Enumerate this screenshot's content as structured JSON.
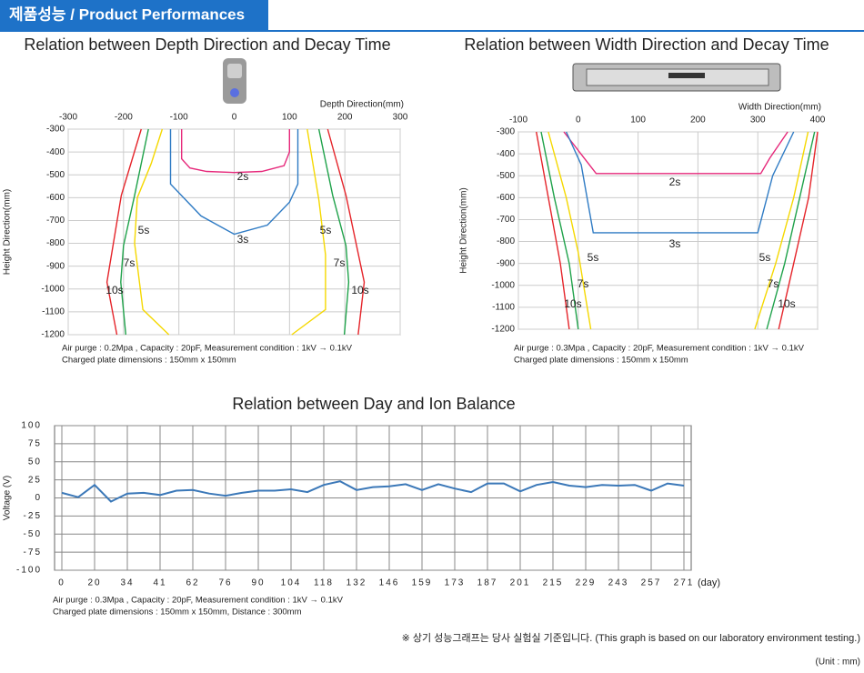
{
  "header": {
    "title": "제품성능 / Product Performances"
  },
  "chart_data": [
    {
      "type": "line",
      "title": "Relation between Depth Direction and Decay Time",
      "x_label": "Depth Direction(mm)",
      "y_label": "Height Direction(mm)",
      "xlim": [
        -300,
        300
      ],
      "xticks": [
        -300,
        -200,
        -100,
        0,
        100,
        200,
        300
      ],
      "ylim": [
        -1200,
        -300
      ],
      "yticks": [
        -300,
        -400,
        -500,
        -600,
        -700,
        -800,
        -900,
        -1000,
        -1100,
        -1200
      ],
      "grid": true,
      "notes": [
        "Air purge : 0.2Mpa , Capacity : 20pF, Measurement condition : 1kV → 0.1kV",
        "Charged plate dimensions : 150mm x 150mm"
      ],
      "series": [
        {
          "name": "2s",
          "color": "#e6287a",
          "x": [
            -95,
            -95,
            -80,
            -50,
            0,
            50,
            90,
            100,
            100
          ],
          "values": [
            -300,
            -430,
            -470,
            -485,
            -490,
            -485,
            -460,
            -400,
            -300
          ]
        },
        {
          "name": "3s",
          "color": "#2f7bc4",
          "x": [
            -115,
            -115,
            -60,
            0,
            60,
            100,
            115,
            115
          ],
          "values": [
            -300,
            -540,
            -680,
            -760,
            -720,
            -620,
            -540,
            -300
          ]
        },
        {
          "name": "5s",
          "color": "#f5d800",
          "x": [
            -130,
            -150,
            -175,
            -180,
            -165,
            -118,
            null,
            132,
            153,
            165,
            165,
            104
          ],
          "values": [
            -300,
            -450,
            -600,
            -800,
            -1090,
            -1200,
            null,
            -300,
            -610,
            -850,
            -1090,
            -1200
          ]
        },
        {
          "name": "7s",
          "color": "#1fa24a",
          "x": [
            -155,
            -180,
            -200,
            -205,
            -196,
            null,
            153,
            178,
            202,
            207,
            199
          ],
          "values": [
            -300,
            -590,
            -810,
            -970,
            -1200,
            null,
            -300,
            -590,
            -810,
            -970,
            -1200
          ]
        },
        {
          "name": "10s",
          "color": "#e5242a",
          "x": [
            -168,
            -204,
            -230,
            -212,
            null,
            169,
            202,
            235,
            224
          ],
          "values": [
            -300,
            -590,
            -970,
            -1200,
            null,
            -300,
            -590,
            -970,
            -1200
          ]
        }
      ]
    },
    {
      "type": "line",
      "title": "Relation between Width Direction and Decay Time",
      "x_label": "Width Direction(mm)",
      "y_label": "Height Direction(mm)",
      "xlim": [
        -100,
        400
      ],
      "xticks": [
        -100,
        0,
        100,
        200,
        300,
        400
      ],
      "ylim": [
        -1200,
        -300
      ],
      "yticks": [
        -300,
        -400,
        -500,
        -600,
        -700,
        -800,
        -900,
        -1000,
        -1100,
        -1200
      ],
      "grid": true,
      "notes": [
        "Air purge : 0.3Mpa , Capacity : 20pF, Measurement condition : 1kV → 0.1kV",
        "Charged plate dimensions : 150mm x 150mm"
      ],
      "series": [
        {
          "name": "2s",
          "color": "#e6287a",
          "x": [
            -24,
            10,
            30,
            305,
            320,
            350
          ],
          "values": [
            -300,
            -420,
            -490,
            -490,
            -420,
            -300
          ]
        },
        {
          "name": "3s",
          "color": "#2f7bc4",
          "x": [
            -20,
            5,
            25,
            300,
            325,
            360
          ],
          "values": [
            -300,
            -450,
            -760,
            -760,
            -500,
            -300
          ]
        },
        {
          "name": "5s",
          "color": "#f5d800",
          "x": [
            -50,
            -20,
            0,
            21,
            null,
            384,
            360,
            330,
            295
          ],
          "values": [
            -300,
            -600,
            -850,
            -1200,
            null,
            -300,
            -600,
            -900,
            -1200
          ]
        },
        {
          "name": "7s",
          "color": "#1fa24a",
          "x": [
            -62,
            -40,
            -15,
            0,
            null,
            395,
            370,
            345,
            315
          ],
          "values": [
            -300,
            -600,
            -900,
            -1200,
            null,
            -300,
            -600,
            -900,
            -1200
          ]
        },
        {
          "name": "10s",
          "color": "#e5242a",
          "x": [
            -70,
            -50,
            -30,
            -15,
            null,
            400,
            385,
            360,
            335
          ],
          "values": [
            -300,
            -600,
            -900,
            -1200,
            null,
            -300,
            -600,
            -900,
            -1200
          ]
        }
      ]
    },
    {
      "type": "category-line",
      "title": "Relation between Day and Ion Balance",
      "x_label": "(day)",
      "y_label": "Voltage  (V)",
      "ylim": [
        -100,
        100
      ],
      "yticks": [
        100,
        75,
        50,
        25,
        0,
        -25,
        -50,
        -75,
        -100
      ],
      "grid": true,
      "notes": [
        "Air purge : 0.3Mpa , Capacity : 20pF, Measurement condition : 1kV → 0.1kV",
        "Charged plate dimensions : 150mm x 150mm, Distance : 300mm"
      ],
      "categories": [
        "0",
        null,
        "20",
        null,
        "34",
        null,
        "41",
        null,
        "62",
        null,
        "76",
        null,
        "90",
        null,
        "104",
        null,
        "118",
        null,
        "132",
        null,
        "146",
        null,
        "159",
        null,
        "173",
        null,
        "187",
        null,
        "201",
        null,
        "215",
        null,
        "229",
        null,
        "243",
        null,
        "257",
        null,
        "271"
      ],
      "series": [
        {
          "color": "#3b78b8",
          "values": [
            7,
            1,
            18,
            -5,
            6,
            7,
            4,
            10,
            11,
            6,
            3,
            7,
            10,
            10,
            12,
            8,
            18,
            23,
            11,
            15,
            16,
            19,
            11,
            19,
            13,
            8,
            20,
            20,
            9,
            18,
            22,
            17,
            15,
            18,
            17,
            18,
            10,
            20,
            17
          ]
        }
      ]
    }
  ],
  "footnote": "※ 상기 성능그래프는 당사 실험실 기준입니다. (This graph is based on our laboratory environment testing.)",
  "unit": "(Unit : mm)"
}
